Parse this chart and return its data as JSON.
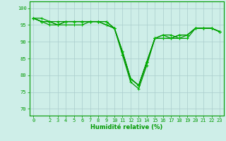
{
  "title": "",
  "xlabel": "Humidité relative (%)",
  "ylabel": "",
  "xlim": [
    -0.5,
    23.5
  ],
  "ylim": [
    68,
    102
  ],
  "yticks": [
    70,
    75,
    80,
    85,
    90,
    95,
    100
  ],
  "xticks": [
    0,
    2,
    3,
    4,
    5,
    6,
    7,
    8,
    9,
    10,
    11,
    12,
    13,
    14,
    15,
    16,
    17,
    18,
    19,
    20,
    21,
    22,
    23
  ],
  "background_color": "#ceeee8",
  "grid_color": "#aacccc",
  "line_color": "#009900",
  "marker_color": "#00bb00",
  "series": [
    [
      97,
      97,
      96,
      96,
      96,
      96,
      96,
      96,
      96,
      96,
      94,
      86,
      78,
      76,
      83,
      91,
      91,
      91,
      91,
      91,
      94,
      94,
      94,
      93
    ],
    [
      97,
      96,
      96,
      95,
      96,
      96,
      96,
      96,
      96,
      96,
      94,
      87,
      79,
      77,
      84,
      91,
      92,
      92,
      91,
      92,
      94,
      94,
      94,
      93
    ],
    [
      97,
      96,
      96,
      95,
      96,
      96,
      96,
      96,
      96,
      95,
      94,
      87,
      79,
      77,
      84,
      91,
      92,
      91,
      92,
      92,
      94,
      94,
      94,
      93
    ],
    [
      97,
      96,
      95,
      95,
      95,
      95,
      95,
      96,
      96,
      95,
      94,
      87,
      79,
      77,
      84,
      91,
      91,
      91,
      92,
      92,
      94,
      94,
      94,
      93
    ]
  ],
  "figsize": [
    3.2,
    2.0
  ],
  "dpi": 100
}
